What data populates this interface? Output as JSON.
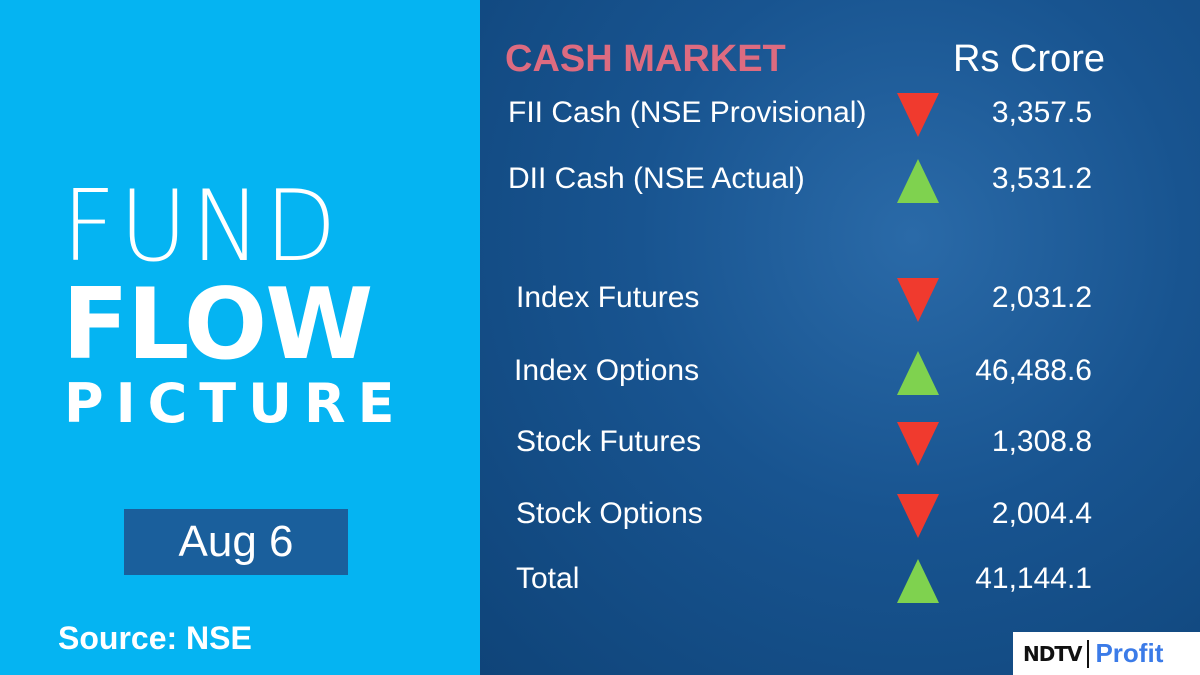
{
  "left": {
    "title_line1": "FUND",
    "title_line2": "FLOW",
    "title_line3": "PICTURE",
    "date": "Aug 6",
    "source": "Source: NSE"
  },
  "table": {
    "title": "CASH MARKET",
    "unit": "Rs Crore",
    "colors": {
      "down": "#f03a2e",
      "up": "#7fd24f",
      "title": "#dd6b80"
    },
    "rows": [
      {
        "label": "FII Cash (NSE Provisional)",
        "direction": "down",
        "value": "3,357.5"
      },
      {
        "label": "DII Cash (NSE Actual)",
        "direction": "up",
        "value": "3,531.2"
      },
      {
        "label": "Index Futures",
        "direction": "down",
        "value": "2,031.2"
      },
      {
        "label": "Index Options",
        "direction": "up",
        "value": "46,488.6"
      },
      {
        "label": "Stock Futures",
        "direction": "down",
        "value": "1,308.8"
      },
      {
        "label": "Stock Options",
        "direction": "down",
        "value": "2,004.4"
      },
      {
        "label": "Total",
        "direction": "up",
        "value": "41,144.1"
      }
    ]
  },
  "logo": {
    "brand": "NDTV",
    "product": "Profit"
  }
}
